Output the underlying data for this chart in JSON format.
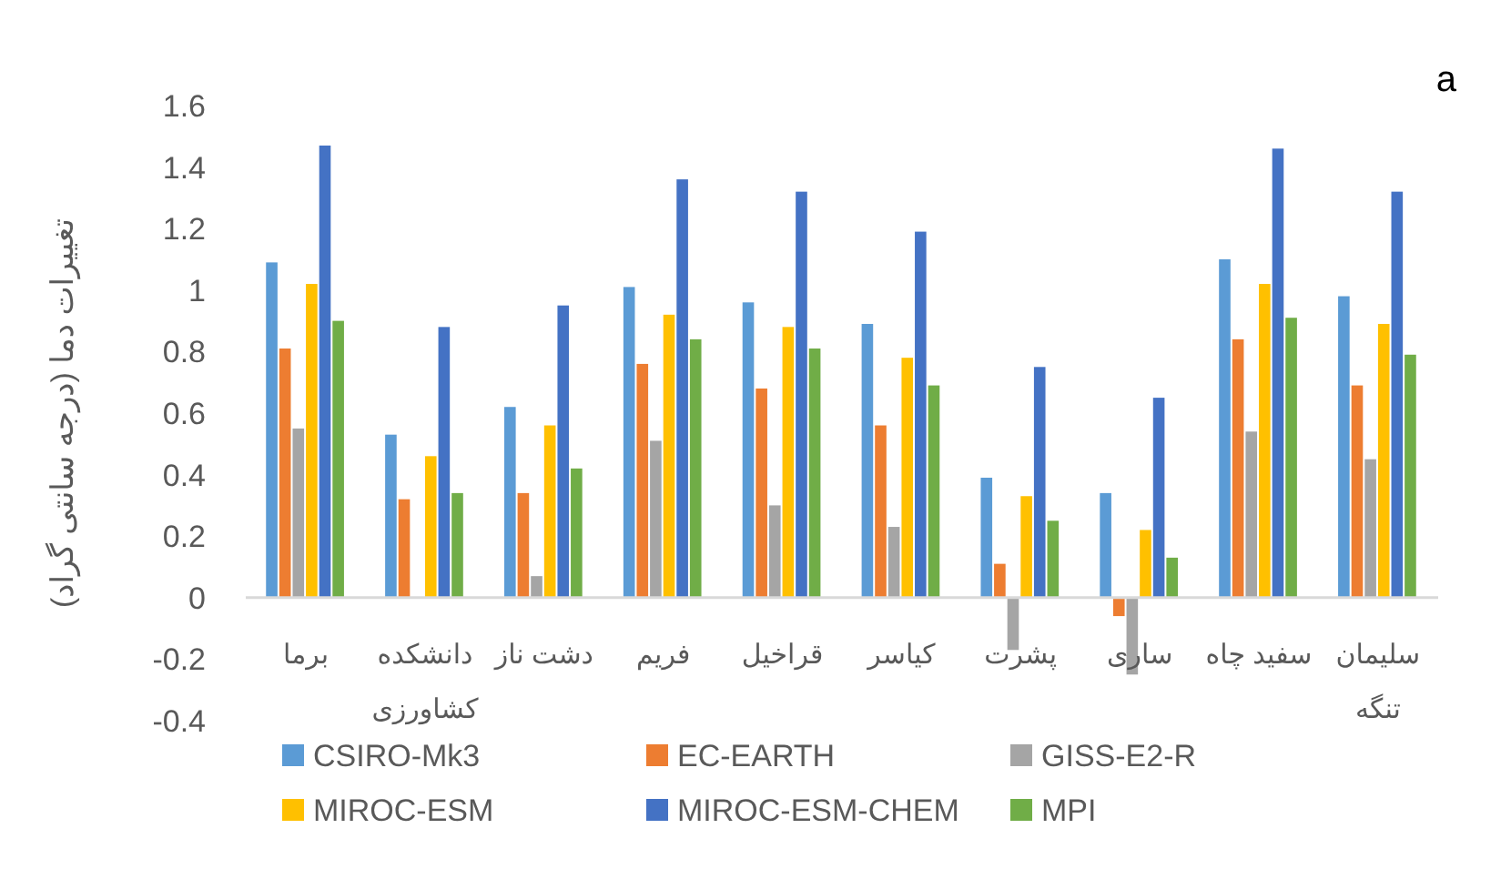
{
  "chart_data": {
    "type": "bar",
    "ylabel": "تغییرات دما (درجه سانتی گراد)",
    "annotations": [
      "a"
    ],
    "categories": [
      "برما",
      "دانشکده کشاورزی",
      "دشت ناز",
      "فریم",
      "قراخیل",
      "کیاسر",
      "پشرت",
      "ساری",
      "سفید چاه",
      "سلیمان تنگه"
    ],
    "series": [
      {
        "name": "CSIRO-Mk3",
        "color": "#5b9bd5",
        "values": [
          1.09,
          0.53,
          0.62,
          1.01,
          0.96,
          0.89,
          0.39,
          0.34,
          1.1,
          0.98
        ]
      },
      {
        "name": "EC-EARTH",
        "color": "#ed7d31",
        "values": [
          0.81,
          0.32,
          0.34,
          0.76,
          0.68,
          0.56,
          0.11,
          -0.06,
          0.84,
          0.69
        ]
      },
      {
        "name": "GISS-E2-R",
        "color": "#a5a5a5",
        "values": [
          0.55,
          0,
          0.07,
          0.51,
          0.3,
          0.23,
          -0.17,
          -0.25,
          0.54,
          0.45
        ]
      },
      {
        "name": "MIROC-ESM",
        "color": "#ffc000",
        "values": [
          1.02,
          0.46,
          0.56,
          0.92,
          0.88,
          0.78,
          0.33,
          0.22,
          1.02,
          0.89
        ]
      },
      {
        "name": "MIROC-ESM-CHEM",
        "color": "#4472c4",
        "values": [
          1.47,
          0.88,
          0.95,
          1.36,
          1.32,
          1.19,
          0.75,
          0.65,
          1.46,
          1.32
        ]
      },
      {
        "name": "MPI",
        "color": "#70ad47",
        "values": [
          0.9,
          0.34,
          0.42,
          0.84,
          0.81,
          0.69,
          0.25,
          0.13,
          0.91,
          0.79
        ]
      }
    ],
    "ylim": [
      -0.4,
      1.6
    ],
    "yticks": [
      {
        "value": -0.4,
        "label": "-0.4"
      },
      {
        "value": -0.2,
        "label": "-0.2"
      },
      0,
      {
        "value": 0.2,
        "label": "0.2"
      },
      {
        "value": 0.4,
        "label": "0.4"
      },
      {
        "value": 0.6,
        "label": "0.6"
      },
      {
        "value": 0.8,
        "label": "0.8"
      },
      1,
      {
        "value": 1.2,
        "label": "1.2"
      },
      {
        "value": 1.4,
        "label": "1.4"
      },
      {
        "value": 1.6,
        "label": "1.6"
      }
    ],
    "grid": false,
    "legend": "bottom"
  }
}
